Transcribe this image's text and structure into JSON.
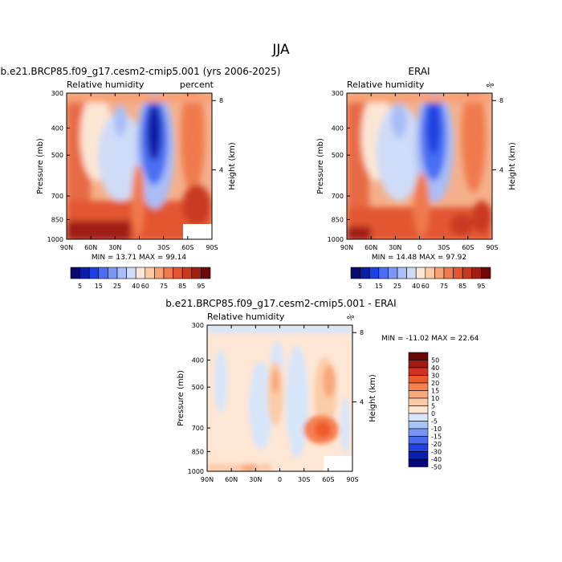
{
  "page_title": "JJA",
  "chart_data": [
    {
      "type": "heatmap",
      "panel": "model",
      "title": "b.e21.BRCP85.f09_g17.cesm2-cmip5.001 (yrs 2006-2025)",
      "variable": "Relative humidity",
      "units": "percent",
      "xlabel": "",
      "ylabel": "Pressure (mb)",
      "y2label": "Height (km)",
      "x_ticks": [
        "90N",
        "60N",
        "30N",
        "0",
        "30S",
        "60S",
        "90S"
      ],
      "y_ticks": [
        "300",
        "400",
        "500",
        "700",
        "850",
        "1000"
      ],
      "y2_ticks": [
        "8",
        "4"
      ],
      "ylim": [
        1000,
        300
      ],
      "stats": "MIN =   13.71   MAX =   99.14",
      "min": 13.71,
      "max": 99.14,
      "levels": [
        "5",
        "15",
        "25",
        "40",
        "60",
        "75",
        "85",
        "95"
      ]
    },
    {
      "type": "heatmap",
      "panel": "obs",
      "title": "ERAI",
      "variable": "Relative humidity",
      "units": "%",
      "xlabel": "",
      "ylabel": "Pressure (mb)",
      "y2label": "Height (km)",
      "x_ticks": [
        "90N",
        "60N",
        "30N",
        "0",
        "30S",
        "60S",
        "90S"
      ],
      "y_ticks": [
        "300",
        "400",
        "500",
        "700",
        "850",
        "1000"
      ],
      "y2_ticks": [
        "8",
        "4"
      ],
      "ylim": [
        1000,
        300
      ],
      "stats": "MIN =   14.48   MAX =   97.92",
      "min": 14.48,
      "max": 97.92,
      "levels": [
        "5",
        "15",
        "25",
        "40",
        "60",
        "75",
        "85",
        "95"
      ]
    },
    {
      "type": "heatmap",
      "panel": "difference",
      "title": "b.e21.BRCP85.f09_g17.cesm2-cmip5.001 - ERAI",
      "variable": "Relative humidity",
      "units": "%",
      "xlabel": "",
      "ylabel": "Pressure (mb)",
      "y2label": "Height (km)",
      "x_ticks": [
        "90N",
        "60N",
        "30N",
        "0",
        "30S",
        "60S",
        "90S"
      ],
      "y_ticks": [
        "300",
        "400",
        "500",
        "700",
        "850",
        "1000"
      ],
      "y2_ticks": [
        "8",
        "4"
      ],
      "ylim": [
        1000,
        300
      ],
      "stats": "MIN = -11.02   MAX =  22.64",
      "min": -11.02,
      "max": 22.64,
      "levels": [
        "50",
        "40",
        "30",
        "20",
        "15",
        "10",
        "5",
        "0",
        "-5",
        "-10",
        "-15",
        "-20",
        "-30",
        "-40",
        "-50"
      ]
    }
  ],
  "colors": {
    "rh_scale": [
      "#08086e",
      "#0a1ea8",
      "#1c3fe0",
      "#4a6ef2",
      "#7b96f4",
      "#a9bdf6",
      "#cfdcf8",
      "#fbe6d4",
      "#fbcaa3",
      "#f7a174",
      "#f07a4e",
      "#e35631",
      "#c83a20",
      "#a01e12",
      "#700808"
    ],
    "diff_scale": [
      "#6a0808",
      "#a01a12",
      "#d23220",
      "#ef5a2c",
      "#f68050",
      "#f9a87c",
      "#fbcca8",
      "#fde6d4",
      "#d8e6fa",
      "#a8c4f5",
      "#7896f1",
      "#4a6aed",
      "#2040e0",
      "#0a1eb0",
      "#06087a"
    ]
  }
}
